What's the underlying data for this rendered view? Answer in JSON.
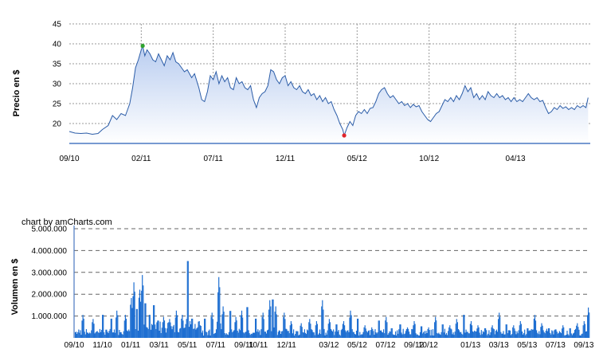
{
  "credit": "chart by amCharts.com",
  "colors": {
    "price_line": "#2c5da8",
    "price_fill_top": "#b9cdf0",
    "price_fill_bottom": "#ffffff",
    "volume_bar": "#1f6fd1",
    "axis": "#4a78c2",
    "grid": "#9a9a9a",
    "max_marker": "#2fa32f",
    "min_marker": "#e0242a"
  },
  "chart_data": [
    {
      "type": "area",
      "ylabel": "Precio en $",
      "ylim": [
        15,
        45
      ],
      "y_ticks": [
        "20",
        "25",
        "30",
        "35",
        "40",
        "45"
      ],
      "x_ticks": [
        {
          "label": "09/10",
          "month_index": 0
        },
        {
          "label": "02/11",
          "month_index": 5
        },
        {
          "label": "07/11",
          "month_index": 10
        },
        {
          "label": "12/11",
          "month_index": 15
        },
        {
          "label": "05/12",
          "month_index": 20
        },
        {
          "label": "10/12",
          "month_index": 25
        },
        {
          "label": "04/13",
          "month_index": 31
        }
      ],
      "x_range_months": [
        0,
        36.2
      ],
      "grid": true,
      "series": [
        {
          "points": [
            [
              0.0,
              18.0
            ],
            [
              0.4,
              17.6
            ],
            [
              0.8,
              17.5
            ],
            [
              1.2,
              17.6
            ],
            [
              1.6,
              17.3
            ],
            [
              2.0,
              17.5
            ],
            [
              2.3,
              18.5
            ],
            [
              2.7,
              19.5
            ],
            [
              3.0,
              22.0
            ],
            [
              3.3,
              21.0
            ],
            [
              3.6,
              22.5
            ],
            [
              3.9,
              22.0
            ],
            [
              4.2,
              25.0
            ],
            [
              4.4,
              29.0
            ],
            [
              4.6,
              34.0
            ],
            [
              4.8,
              36.0
            ],
            [
              5.0,
              38.5
            ],
            [
              5.1,
              39.5
            ],
            [
              5.25,
              37.0
            ],
            [
              5.4,
              38.5
            ],
            [
              5.6,
              37.5
            ],
            [
              5.8,
              36.0
            ],
            [
              6.0,
              35.5
            ],
            [
              6.2,
              37.5
            ],
            [
              6.4,
              36.0
            ],
            [
              6.6,
              34.5
            ],
            [
              6.8,
              37.0
            ],
            [
              7.0,
              36.0
            ],
            [
              7.2,
              37.8
            ],
            [
              7.4,
              35.5
            ],
            [
              7.6,
              35.0
            ],
            [
              7.8,
              34.0
            ],
            [
              8.0,
              33.0
            ],
            [
              8.2,
              33.5
            ],
            [
              8.5,
              31.5
            ],
            [
              8.7,
              32.5
            ],
            [
              9.0,
              29.0
            ],
            [
              9.2,
              26.0
            ],
            [
              9.4,
              25.5
            ],
            [
              9.6,
              28.0
            ],
            [
              9.8,
              32.0
            ],
            [
              10.0,
              31.0
            ],
            [
              10.2,
              33.0
            ],
            [
              10.4,
              30.0
            ],
            [
              10.6,
              32.0
            ],
            [
              10.8,
              30.5
            ],
            [
              11.0,
              31.5
            ],
            [
              11.2,
              29.0
            ],
            [
              11.4,
              28.5
            ],
            [
              11.6,
              31.5
            ],
            [
              11.8,
              30.0
            ],
            [
              12.0,
              30.5
            ],
            [
              12.2,
              29.0
            ],
            [
              12.4,
              28.5
            ],
            [
              12.6,
              29.5
            ],
            [
              12.8,
              26.0
            ],
            [
              13.0,
              24.0
            ],
            [
              13.2,
              26.5
            ],
            [
              13.4,
              27.5
            ],
            [
              13.6,
              28.0
            ],
            [
              13.8,
              29.5
            ],
            [
              14.0,
              33.5
            ],
            [
              14.2,
              33.0
            ],
            [
              14.4,
              31.0
            ],
            [
              14.6,
              30.0
            ],
            [
              14.8,
              31.5
            ],
            [
              15.0,
              32.0
            ],
            [
              15.2,
              29.5
            ],
            [
              15.4,
              30.5
            ],
            [
              15.6,
              29.0
            ],
            [
              15.8,
              28.5
            ],
            [
              16.0,
              29.5
            ],
            [
              16.2,
              28.0
            ],
            [
              16.4,
              27.5
            ],
            [
              16.6,
              28.5
            ],
            [
              16.8,
              27.0
            ],
            [
              17.0,
              27.5
            ],
            [
              17.2,
              26.0
            ],
            [
              17.4,
              27.0
            ],
            [
              17.6,
              25.5
            ],
            [
              17.8,
              26.5
            ],
            [
              18.0,
              25.0
            ],
            [
              18.2,
              25.5
            ],
            [
              18.4,
              23.5
            ],
            [
              18.6,
              22.0
            ],
            [
              18.8,
              20.0
            ],
            [
              19.0,
              18.5
            ],
            [
              19.1,
              17.0
            ],
            [
              19.3,
              19.0
            ],
            [
              19.5,
              20.5
            ],
            [
              19.7,
              19.5
            ],
            [
              19.9,
              22.0
            ],
            [
              20.1,
              23.0
            ],
            [
              20.3,
              22.5
            ],
            [
              20.5,
              23.5
            ],
            [
              20.7,
              22.5
            ],
            [
              20.9,
              23.8
            ],
            [
              21.1,
              24.0
            ],
            [
              21.3,
              25.5
            ],
            [
              21.5,
              27.5
            ],
            [
              21.7,
              28.5
            ],
            [
              21.9,
              29.0
            ],
            [
              22.1,
              27.5
            ],
            [
              22.3,
              26.5
            ],
            [
              22.5,
              27.0
            ],
            [
              22.7,
              26.0
            ],
            [
              22.9,
              25.0
            ],
            [
              23.1,
              25.5
            ],
            [
              23.3,
              24.5
            ],
            [
              23.5,
              25.0
            ],
            [
              23.7,
              24.0
            ],
            [
              23.9,
              24.8
            ],
            [
              24.1,
              24.2
            ],
            [
              24.3,
              24.5
            ],
            [
              24.5,
              23.0
            ],
            [
              24.7,
              22.0
            ],
            [
              24.9,
              21.0
            ],
            [
              25.1,
              20.5
            ],
            [
              25.3,
              21.5
            ],
            [
              25.5,
              22.5
            ],
            [
              25.7,
              23.0
            ],
            [
              25.9,
              24.5
            ],
            [
              26.1,
              26.0
            ],
            [
              26.3,
              25.5
            ],
            [
              26.5,
              26.5
            ],
            [
              26.7,
              25.5
            ],
            [
              26.9,
              27.0
            ],
            [
              27.1,
              26.0
            ],
            [
              27.3,
              27.5
            ],
            [
              27.5,
              29.5
            ],
            [
              27.7,
              28.0
            ],
            [
              27.9,
              29.0
            ],
            [
              28.1,
              26.5
            ],
            [
              28.3,
              27.5
            ],
            [
              28.5,
              26.0
            ],
            [
              28.7,
              27.0
            ],
            [
              28.9,
              26.0
            ],
            [
              29.1,
              28.0
            ],
            [
              29.3,
              27.0
            ],
            [
              29.5,
              26.5
            ],
            [
              29.7,
              27.5
            ],
            [
              29.9,
              26.5
            ],
            [
              30.1,
              27.0
            ],
            [
              30.3,
              26.0
            ],
            [
              30.5,
              26.5
            ],
            [
              30.7,
              25.5
            ],
            [
              30.9,
              26.5
            ],
            [
              31.1,
              25.5
            ],
            [
              31.3,
              26.0
            ],
            [
              31.5,
              25.5
            ],
            [
              31.7,
              26.5
            ],
            [
              31.9,
              27.5
            ],
            [
              32.1,
              26.5
            ],
            [
              32.3,
              26.0
            ],
            [
              32.5,
              26.5
            ],
            [
              32.7,
              25.5
            ],
            [
              32.9,
              25.8
            ],
            [
              33.1,
              24.0
            ],
            [
              33.3,
              22.5
            ],
            [
              33.5,
              23.0
            ],
            [
              33.7,
              24.0
            ],
            [
              33.9,
              23.5
            ],
            [
              34.1,
              24.5
            ],
            [
              34.3,
              23.8
            ],
            [
              34.5,
              24.2
            ],
            [
              34.7,
              23.5
            ],
            [
              34.9,
              24.0
            ],
            [
              35.1,
              23.5
            ],
            [
              35.3,
              24.5
            ],
            [
              35.5,
              24.0
            ],
            [
              35.7,
              24.5
            ],
            [
              35.9,
              24.0
            ],
            [
              36.05,
              26.5
            ]
          ]
        }
      ],
      "markers": [
        {
          "type": "max",
          "x": 5.1,
          "y": 39.5
        },
        {
          "type": "min",
          "x": 19.1,
          "y": 17.0
        }
      ]
    },
    {
      "type": "bar",
      "ylabel": "Volumen en $",
      "ylim": [
        0,
        5000000
      ],
      "y_ticks": [
        "1.000.000",
        "2.000.000",
        "3.000.000",
        "4.000.000",
        "5.000.000"
      ],
      "x_ticks": [
        {
          "label": "09/10",
          "month_index": 0
        },
        {
          "label": "11/10",
          "month_index": 2
        },
        {
          "label": "01/11",
          "month_index": 4
        },
        {
          "label": "03/11",
          "month_index": 6
        },
        {
          "label": "05/11",
          "month_index": 8
        },
        {
          "label": "07/11",
          "month_index": 10
        },
        {
          "label": "09/11",
          "month_index": 12
        },
        {
          "label": "10/11",
          "month_index": 13
        },
        {
          "label": "12/11",
          "month_index": 15
        },
        {
          "label": "03/12",
          "month_index": 18
        },
        {
          "label": "05/12",
          "month_index": 20
        },
        {
          "label": "07/12",
          "month_index": 22
        },
        {
          "label": "09/12",
          "month_index": 24
        },
        {
          "label": "10/12",
          "month_index": 25
        },
        {
          "label": "01/13",
          "month_index": 28
        },
        {
          "label": "03/13",
          "month_index": 30
        },
        {
          "label": "05/13",
          "month_index": 32
        },
        {
          "label": "07/13",
          "month_index": 34
        },
        {
          "label": "09/13",
          "month_index": 36
        }
      ],
      "x_range_months": [
        0,
        36.4
      ],
      "grid": true,
      "spikes": [
        [
          0.6,
          1100000
        ],
        [
          1.3,
          900000
        ],
        [
          2.0,
          1200000
        ],
        [
          2.6,
          1000000
        ],
        [
          3.0,
          1300000
        ],
        [
          3.6,
          1100000
        ],
        [
          4.0,
          1900000
        ],
        [
          4.2,
          2650000
        ],
        [
          4.4,
          1500000
        ],
        [
          4.6,
          2300000
        ],
        [
          4.8,
          3000000
        ],
        [
          5.0,
          1800000
        ],
        [
          5.3,
          1200000
        ],
        [
          5.6,
          1700000
        ],
        [
          5.9,
          900000
        ],
        [
          6.3,
          1000000
        ],
        [
          6.7,
          900000
        ],
        [
          7.2,
          1300000
        ],
        [
          7.6,
          1100000
        ],
        [
          8.0,
          4000000
        ],
        [
          8.3,
          1000000
        ],
        [
          8.8,
          800000
        ],
        [
          9.2,
          1000000
        ],
        [
          9.7,
          1200000
        ],
        [
          10.2,
          2900000
        ],
        [
          10.5,
          1500000
        ],
        [
          11.0,
          1400000
        ],
        [
          11.4,
          1000000
        ],
        [
          11.8,
          1300000
        ],
        [
          12.2,
          1600000
        ],
        [
          12.8,
          1000000
        ],
        [
          13.3,
          1200000
        ],
        [
          13.8,
          1800000
        ],
        [
          14.0,
          2000000
        ],
        [
          14.2,
          1500000
        ],
        [
          14.8,
          1200000
        ],
        [
          15.3,
          800000
        ],
        [
          16.0,
          700000
        ],
        [
          16.6,
          900000
        ],
        [
          17.1,
          800000
        ],
        [
          17.5,
          1800000
        ],
        [
          18.0,
          900000
        ],
        [
          18.5,
          700000
        ],
        [
          19.0,
          800000
        ],
        [
          19.5,
          1300000
        ],
        [
          20.0,
          1000000
        ],
        [
          20.5,
          600000
        ],
        [
          21.0,
          500000
        ],
        [
          21.5,
          900000
        ],
        [
          22.0,
          1000000
        ],
        [
          22.4,
          500000
        ],
        [
          23.0,
          700000
        ],
        [
          23.5,
          500000
        ],
        [
          24.0,
          800000
        ],
        [
          24.5,
          600000
        ],
        [
          25.0,
          500000
        ],
        [
          25.5,
          1000000
        ],
        [
          26.0,
          700000
        ],
        [
          26.5,
          600000
        ],
        [
          27.0,
          900000
        ],
        [
          27.5,
          1200000
        ],
        [
          28.0,
          800000
        ],
        [
          28.5,
          600000
        ],
        [
          29.0,
          500000
        ],
        [
          29.5,
          600000
        ],
        [
          30.0,
          1200000
        ],
        [
          30.5,
          700000
        ],
        [
          31.0,
          600000
        ],
        [
          31.5,
          800000
        ],
        [
          32.0,
          500000
        ],
        [
          32.5,
          1100000
        ],
        [
          33.0,
          700000
        ],
        [
          33.5,
          500000
        ],
        [
          34.0,
          400000
        ],
        [
          34.5,
          600000
        ],
        [
          35.0,
          500000
        ],
        [
          35.5,
          700000
        ],
        [
          36.0,
          800000
        ],
        [
          36.3,
          1450000
        ]
      ],
      "baseline_volume": 350000
    }
  ]
}
